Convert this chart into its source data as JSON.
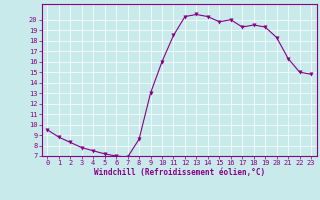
{
  "x": [
    0,
    1,
    2,
    3,
    4,
    5,
    6,
    7,
    8,
    9,
    10,
    11,
    12,
    13,
    14,
    15,
    16,
    17,
    18,
    19,
    20,
    21,
    22,
    23
  ],
  "y": [
    9.5,
    8.8,
    8.3,
    7.8,
    7.5,
    7.2,
    7.0,
    6.9,
    8.6,
    13.0,
    16.0,
    18.5,
    20.3,
    20.5,
    20.3,
    19.8,
    20.0,
    19.3,
    19.5,
    19.3,
    18.3,
    16.3,
    15.0,
    14.8
  ],
  "line_color": "#880088",
  "marker": "v",
  "marker_size": 2.5,
  "bg_color": "#c8eaea",
  "grid_color": "#ffffff",
  "xlabel": "Windchill (Refroidissement éolien,°C)",
  "ylim": [
    7,
    21
  ],
  "xlim": [
    -0.5,
    23.5
  ],
  "yticks": [
    7,
    8,
    9,
    10,
    11,
    12,
    13,
    14,
    15,
    16,
    17,
    18,
    19,
    20
  ],
  "xticks": [
    0,
    1,
    2,
    3,
    4,
    5,
    6,
    7,
    8,
    9,
    10,
    11,
    12,
    13,
    14,
    15,
    16,
    17,
    18,
    19,
    20,
    21,
    22,
    23
  ],
  "tick_color": "#880088",
  "label_color": "#880088",
  "spine_color": "#880088",
  "tick_labelsize": 5.0,
  "xlabel_fontsize": 5.5
}
